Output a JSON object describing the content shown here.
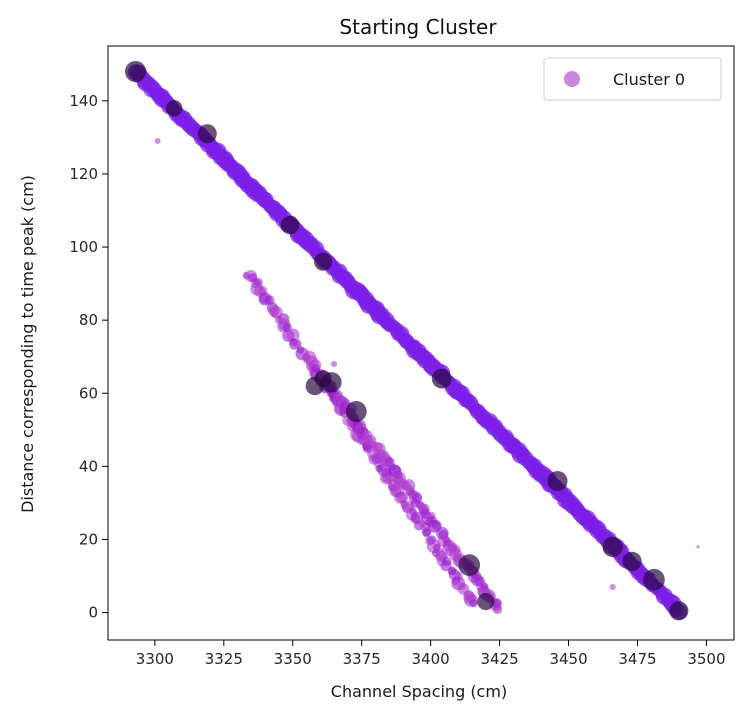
{
  "chart_data": {
    "type": "scatter",
    "title": "Starting Cluster",
    "xlabel": "Channel Spacing (cm)",
    "ylabel": "Distance corresponding to time peak (cm)",
    "xlim": [
      3283,
      3510
    ],
    "ylim": [
      -7.5,
      155
    ],
    "xticks": [
      3300,
      3325,
      3350,
      3375,
      3400,
      3425,
      3450,
      3475,
      3500
    ],
    "yticks": [
      0,
      20,
      40,
      60,
      80,
      100,
      120,
      140
    ],
    "grid": false,
    "legend": {
      "position": "top-right",
      "entries": [
        "Cluster 0"
      ]
    },
    "colors": {
      "series": "#7c1fe8",
      "secondary": "#b040d0",
      "dark": "#2a0a40"
    },
    "series": [
      {
        "name": "Cluster 0",
        "segments": [
          {
            "x0": 3293,
            "y0": 148,
            "x1": 3490,
            "y1": 0.5,
            "kind": "main"
          },
          {
            "x0": 3334,
            "y0": 93,
            "x1": 3416,
            "y1": 2,
            "kind": "secondary"
          },
          {
            "x0": 3358,
            "y0": 67,
            "x1": 3425,
            "y1": 1,
            "kind": "secondary"
          }
        ],
        "highlights": [
          [
            3293,
            148
          ],
          [
            3307,
            138
          ],
          [
            3319,
            131
          ],
          [
            3349,
            106
          ],
          [
            3361,
            96
          ],
          [
            3361,
            64
          ],
          [
            3358,
            62
          ],
          [
            3364,
            63
          ],
          [
            3373,
            55
          ],
          [
            3404,
            64
          ],
          [
            3414,
            13
          ],
          [
            3420,
            3
          ],
          [
            3446,
            36
          ],
          [
            3466,
            18
          ],
          [
            3473,
            14
          ],
          [
            3481,
            9
          ],
          [
            3490,
            0.5
          ]
        ],
        "outliers": [
          [
            3301,
            129
          ],
          [
            3497,
            18
          ],
          [
            3466,
            7
          ],
          [
            3365,
            68
          ]
        ]
      }
    ]
  }
}
